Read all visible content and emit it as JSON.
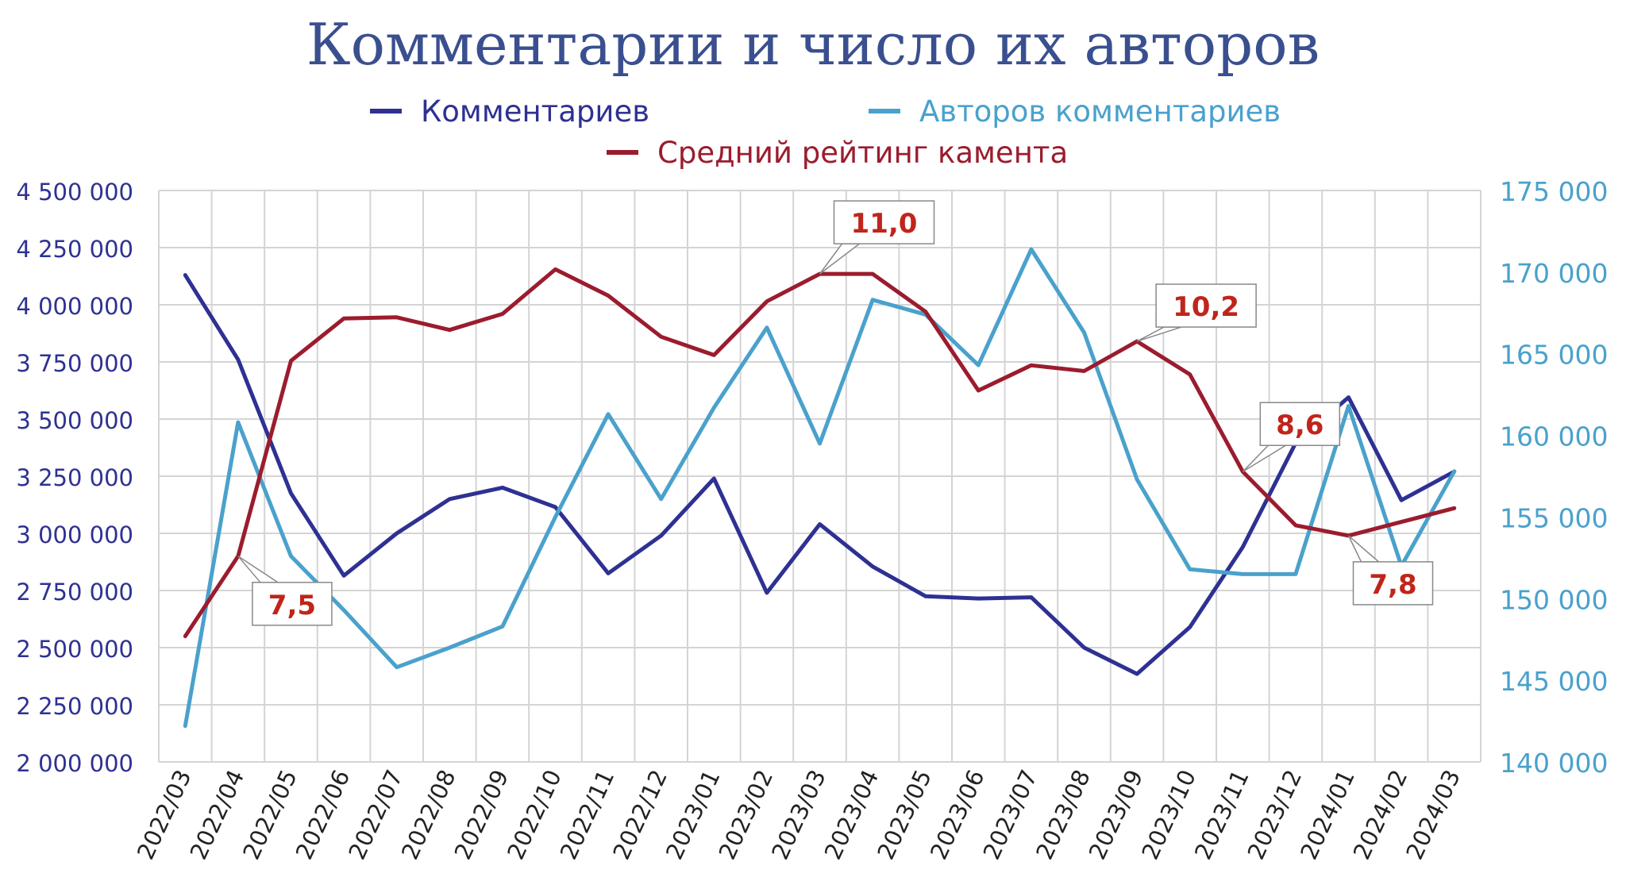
{
  "chart_data": {
    "type": "line",
    "title": "Комментарии и число их авторов",
    "categories": [
      "2022/03",
      "2022/04",
      "2022/05",
      "2022/06",
      "2022/07",
      "2022/08",
      "2022/09",
      "2022/10",
      "2022/11",
      "2022/12",
      "2023/01",
      "2023/02",
      "2023/03",
      "2023/04",
      "2023/05",
      "2023/06",
      "2023/07",
      "2023/08",
      "2023/09",
      "2023/10",
      "2023/11",
      "2023/12",
      "2024/01",
      "2024/02",
      "2024/03"
    ],
    "left_axis": {
      "ylim": [
        2000000,
        4500000
      ],
      "ticks": [
        2000000,
        2250000,
        2500000,
        2750000,
        3000000,
        3250000,
        3500000,
        3750000,
        4000000,
        4250000,
        4500000
      ],
      "tick_labels": [
        "2 000 000",
        "2 250 000",
        "2 500 000",
        "2 750 000",
        "3 000 000",
        "3 250 000",
        "3 500 000",
        "3 750 000",
        "4 000 000",
        "4 250 000",
        "4 500 000"
      ]
    },
    "right_axis": {
      "ylim": [
        140000,
        175000
      ],
      "ticks": [
        140000,
        145000,
        150000,
        155000,
        160000,
        165000,
        170000,
        175000
      ],
      "tick_labels": [
        "140 000",
        "145 000",
        "150 000",
        "155 000",
        "160 000",
        "165 000",
        "170 000",
        "175 000"
      ]
    },
    "grid": true,
    "legend_position": "top",
    "series": [
      {
        "name": "Комментариев",
        "color": "#2e3192",
        "axis": "left",
        "values": [
          4130000,
          3760000,
          3175000,
          2815000,
          3000000,
          3150000,
          3200000,
          3115000,
          2825000,
          2990000,
          3240000,
          2740000,
          3040000,
          2855000,
          2725000,
          2715000,
          2720000,
          2500000,
          2385000,
          2590000,
          2940000,
          3395000,
          3595000,
          3145000,
          3270000
        ]
      },
      {
        "name": "Авторов комментариев",
        "color": "#4aa1cc",
        "axis": "right",
        "values": [
          142200,
          160800,
          152600,
          149300,
          145800,
          147000,
          148300,
          155000,
          161300,
          156100,
          161700,
          166600,
          159500,
          168300,
          167400,
          164300,
          171400,
          166300,
          157300,
          151800,
          151500,
          151500,
          161800,
          152000,
          157800
        ]
      },
      {
        "name": "Средний рейтинг камента",
        "color": "#9b1c2e",
        "axis": "left",
        "values": [
          2550000,
          2900000,
          3755000,
          3940000,
          3945000,
          3890000,
          3960000,
          4155000,
          4040000,
          3860000,
          3780000,
          4015000,
          4135000,
          4135000,
          3970000,
          3625000,
          3735000,
          3710000,
          3840000,
          3695000,
          3270000,
          3035000,
          2990000,
          3050000,
          3110000
        ]
      }
    ],
    "annotations": [
      {
        "text": "7,5",
        "category": "2022/04"
      },
      {
        "text": "11,0",
        "category": "2023/03"
      },
      {
        "text": "10,2",
        "category": "2023/09"
      },
      {
        "text": "8,6",
        "category": "2023/11"
      },
      {
        "text": "7,8",
        "category": "2024/01"
      }
    ]
  }
}
